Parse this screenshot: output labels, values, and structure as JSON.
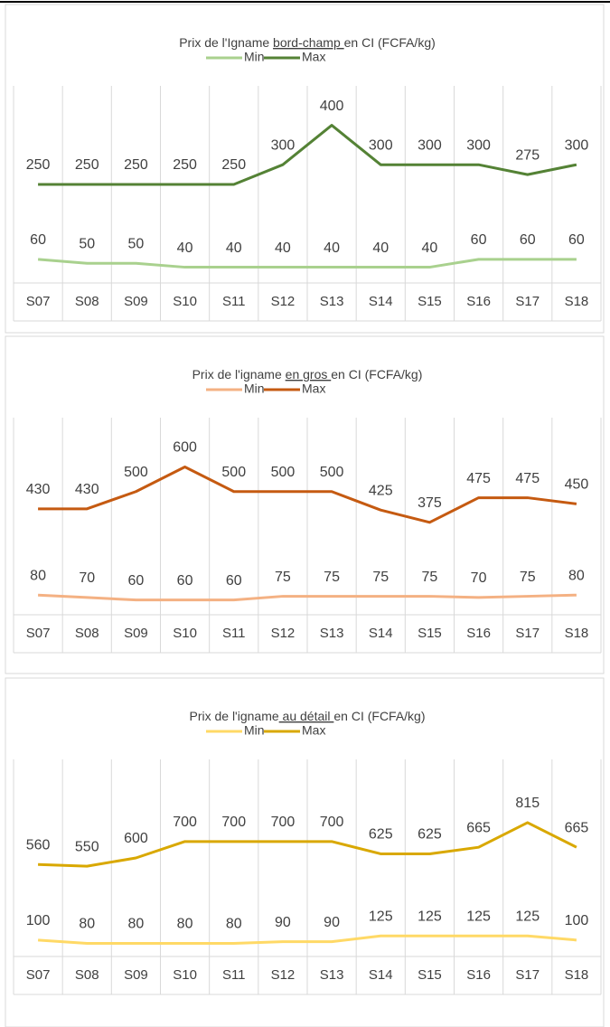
{
  "chart_data": [
    {
      "type": "line",
      "title": {
        "before": "Prix de l'Igname ",
        "underlined": "bord-champ ",
        "after": "en CI (FCFA/kg)"
      },
      "categories": [
        "S07",
        "S08",
        "S09",
        "S10",
        "S11",
        "S12",
        "S13",
        "S14",
        "S15",
        "S16",
        "S17",
        "S18"
      ],
      "series": [
        {
          "name": "Min",
          "color": "#a9d18e",
          "values": [
            60,
            50,
            50,
            40,
            40,
            40,
            40,
            40,
            40,
            60,
            60,
            60
          ]
        },
        {
          "name": "Max",
          "color": "#548235",
          "values": [
            250,
            250,
            250,
            250,
            250,
            300,
            400,
            300,
            300,
            300,
            275,
            300
          ]
        }
      ],
      "ylim": [
        0,
        500
      ],
      "legend": "top"
    },
    {
      "type": "line",
      "title": {
        "before": "Prix de l'igname ",
        "underlined": "en gros ",
        "after": "en CI (FCFA/kg)"
      },
      "categories": [
        "S07",
        "S08",
        "S09",
        "S10",
        "S11",
        "S12",
        "S13",
        "S14",
        "S15",
        "S16",
        "S17",
        "S18"
      ],
      "series": [
        {
          "name": "Min",
          "color": "#f4b183",
          "values": [
            80,
            70,
            60,
            60,
            60,
            75,
            75,
            75,
            75,
            70,
            75,
            80
          ]
        },
        {
          "name": "Max",
          "color": "#c55a11",
          "values": [
            430,
            430,
            500,
            600,
            500,
            500,
            500,
            425,
            375,
            475,
            475,
            450
          ]
        }
      ],
      "ylim": [
        0,
        800
      ],
      "legend": "top"
    },
    {
      "type": "line",
      "title": {
        "before": "Prix de l'igname",
        "underlined": " au détail ",
        "after": "en CI (FCFA/kg)"
      },
      "categories": [
        "S07",
        "S08",
        "S09",
        "S10",
        "S11",
        "S12",
        "S13",
        "S14",
        "S15",
        "S16",
        "S17",
        "S18"
      ],
      "series": [
        {
          "name": "Min",
          "color": "#ffd966",
          "values": [
            100,
            80,
            80,
            80,
            80,
            90,
            90,
            125,
            125,
            125,
            125,
            100
          ]
        },
        {
          "name": "Max",
          "color": "#d9a800",
          "values": [
            560,
            550,
            600,
            700,
            700,
            700,
            700,
            625,
            625,
            665,
            815,
            665
          ]
        }
      ],
      "ylim": [
        0,
        1200
      ],
      "legend": "top"
    }
  ]
}
